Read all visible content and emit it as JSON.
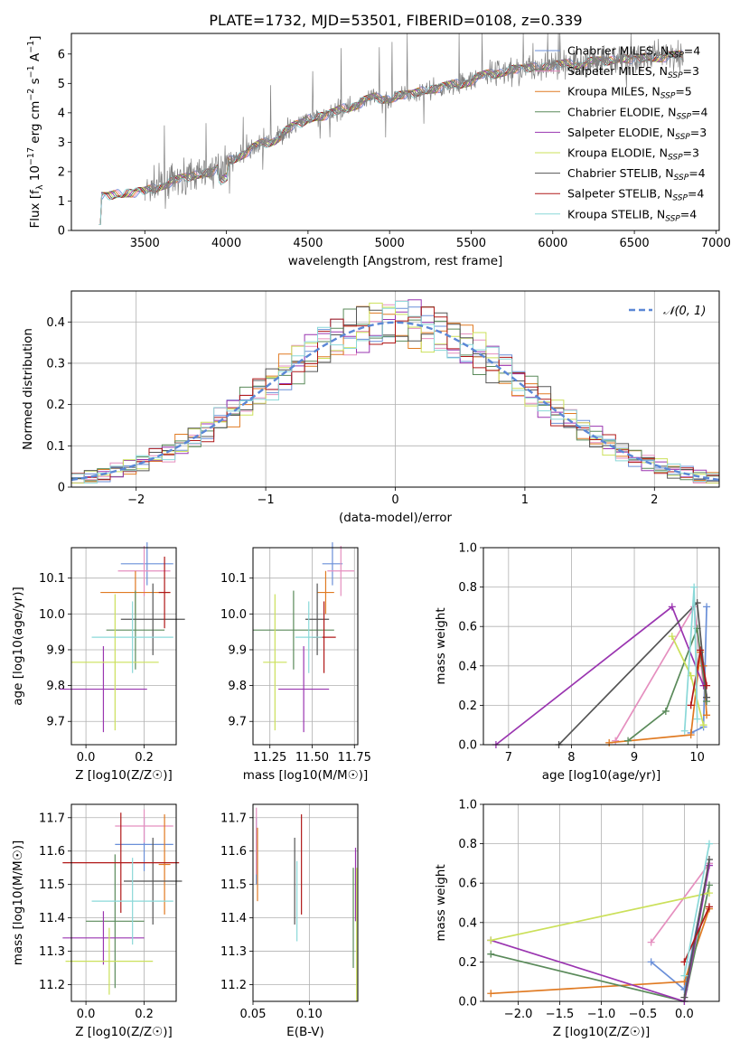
{
  "figure_title": "PLATE=1732, MJD=53501, FIBERID=0108, z=0.339",
  "colors": {
    "Chabrier MILES": "#6a8fd8",
    "Salpeter MILES": "#e58fbf",
    "Kroupa MILES": "#e07a22",
    "Chabrier ELODIE": "#5a8a5a",
    "Salpeter ELODIE": "#9a35b0",
    "Kroupa ELODIE": "#cbe05a",
    "Chabrier STELIB": "#555555",
    "Salpeter STELIB": "#b01818",
    "Kroupa STELIB": "#8ad8d8"
  },
  "chart_data": [
    {
      "id": "spectrum",
      "type": "line",
      "title": "PLATE=1732, MJD=53501, FIBERID=0108, z=0.339",
      "xlabel": "wavelength [Angstrom, rest frame]",
      "ylabel": "Flux [f_λ 10^-17 erg cm^-2 s^-1 A^-1]",
      "xlim": [
        3050,
        7020
      ],
      "ylim": [
        0,
        6.7
      ],
      "xticks": [
        3500,
        4000,
        4500,
        5000,
        5500,
        6000,
        6500,
        7000
      ],
      "yticks": [
        0,
        1,
        2,
        3,
        4,
        5,
        6
      ],
      "grid": false,
      "legend_position": "top-right",
      "legend": [
        {
          "name": "Chabrier MILES",
          "nssp": "4"
        },
        {
          "name": "Salpeter MILES",
          "nssp": "3"
        },
        {
          "name": "Kroupa MILES",
          "nssp": "5"
        },
        {
          "name": "Chabrier ELODIE",
          "nssp": "4"
        },
        {
          "name": "Salpeter ELODIE",
          "nssp": "3"
        },
        {
          "name": "Kroupa ELODIE",
          "nssp": "3"
        },
        {
          "name": "Chabrier STELIB",
          "nssp": "4"
        },
        {
          "name": "Salpeter STELIB",
          "nssp": "4"
        },
        {
          "name": "Kroupa STELIB",
          "nssp": "4"
        }
      ],
      "continuum": {
        "x": [
          3220,
          3300,
          3400,
          3500,
          3600,
          3700,
          3800,
          3900,
          4000,
          4100,
          4200,
          4300,
          4400,
          4500,
          4600,
          4700,
          4800,
          4900,
          5000,
          5100,
          5200,
          5300,
          5400,
          5500,
          5600,
          5700,
          5800,
          5900,
          6000,
          6100,
          6200,
          6300,
          6400,
          6500,
          6600,
          6700,
          6800
        ],
        "y": [
          1.15,
          1.2,
          1.3,
          1.3,
          1.55,
          1.7,
          1.9,
          1.95,
          2.3,
          2.6,
          2.9,
          3.1,
          3.5,
          3.8,
          3.9,
          4.1,
          4.3,
          4.5,
          4.5,
          4.6,
          4.75,
          4.85,
          4.95,
          5.1,
          5.3,
          5.4,
          5.5,
          5.55,
          5.6,
          5.65,
          5.7,
          5.75,
          5.85,
          5.8,
          5.9,
          5.9,
          5.95
        ]
      },
      "data_range": [
        3500,
        6800
      ],
      "model_range": [
        3220,
        6800
      ]
    },
    {
      "id": "residuals",
      "type": "bar",
      "xlabel": "(data-model)/error",
      "ylabel": "Normed distribution",
      "xlim": [
        -2.5,
        2.5
      ],
      "ylim": [
        0,
        0.475
      ],
      "xticks": [
        -2,
        -1,
        0,
        1,
        2
      ],
      "yticks": [
        0,
        0.1,
        0.2,
        0.3,
        0.4
      ],
      "grid": true,
      "legend_position": "top-right",
      "reference_curve": "N(0,1)",
      "bin_width": 0.1
    },
    {
      "id": "age_vs_Z",
      "type": "scatter",
      "xlabel": "Z [log10(Z/Z☉)]",
      "ylabel": "age [log10(age/yr)]",
      "xlim": [
        -0.05,
        0.31
      ],
      "ylim": [
        9.635,
        10.185
      ],
      "xticks": [
        0.0,
        0.2
      ],
      "yticks": [
        9.7,
        9.8,
        9.9,
        10.0,
        10.1
      ],
      "grid": true,
      "points": [
        {
          "model": "Chabrier MILES",
          "x": 0.21,
          "y": 10.14,
          "xerr": 0.09,
          "yerr": 0.06
        },
        {
          "model": "Salpeter MILES",
          "x": 0.2,
          "y": 10.12,
          "xerr": 0.09,
          "yerr": 0.07
        },
        {
          "model": "Kroupa MILES",
          "x": 0.17,
          "y": 10.06,
          "xerr": 0.12,
          "yerr": 0.06
        },
        {
          "model": "Chabrier ELODIE",
          "x": 0.17,
          "y": 9.955,
          "xerr": 0.1,
          "yerr": 0.11
        },
        {
          "model": "Salpeter ELODIE",
          "x": 0.06,
          "y": 9.79,
          "xerr": 0.15,
          "yerr": 0.12
        },
        {
          "model": "Kroupa ELODIE",
          "x": 0.1,
          "y": 9.865,
          "xerr": 0.15,
          "yerr": 0.19
        },
        {
          "model": "Chabrier STELIB",
          "x": 0.23,
          "y": 9.985,
          "xerr": 0.11,
          "yerr": 0.1
        },
        {
          "model": "Salpeter STELIB",
          "x": 0.27,
          "y": 10.06,
          "xerr": 0.02,
          "yerr": 0.1
        },
        {
          "model": "Kroupa STELIB",
          "x": 0.16,
          "y": 9.935,
          "xerr": 0.14,
          "yerr": 0.1
        }
      ]
    },
    {
      "id": "age_vs_mass",
      "type": "scatter",
      "xlabel": "mass [log10(M/M☉)]",
      "ylabel": "",
      "xlim": [
        11.15,
        11.77
      ],
      "ylim": [
        9.635,
        10.185
      ],
      "xticks": [
        11.25,
        11.5,
        11.75
      ],
      "yticks": [
        9.7,
        9.8,
        9.9,
        10.0,
        10.1
      ],
      "grid": true,
      "points": [
        {
          "model": "Chabrier MILES",
          "x": 11.62,
          "y": 10.14,
          "xerr": 0.06,
          "yerr": 0.06
        },
        {
          "model": "Salpeter MILES",
          "x": 11.67,
          "y": 10.12,
          "xerr": 0.08,
          "yerr": 0.07
        },
        {
          "model": "Kroupa MILES",
          "x": 11.58,
          "y": 10.06,
          "xerr": 0.05,
          "yerr": 0.06
        },
        {
          "model": "Chabrier ELODIE",
          "x": 11.39,
          "y": 9.955,
          "xerr": 0.24,
          "yerr": 0.11
        },
        {
          "model": "Salpeter ELODIE",
          "x": 11.45,
          "y": 9.79,
          "xerr": 0.15,
          "yerr": 0.12
        },
        {
          "model": "Kroupa ELODIE",
          "x": 11.28,
          "y": 9.865,
          "xerr": 0.07,
          "yerr": 0.19
        },
        {
          "model": "Chabrier STELIB",
          "x": 11.53,
          "y": 9.985,
          "xerr": 0.07,
          "yerr": 0.1
        },
        {
          "model": "Salpeter STELIB",
          "x": 11.57,
          "y": 9.935,
          "xerr": 0.07,
          "yerr": 0.1
        },
        {
          "model": "Kroupa STELIB",
          "x": 11.48,
          "y": 9.935,
          "xerr": 0.08,
          "yerr": 0.1
        }
      ]
    },
    {
      "id": "weight_vs_age",
      "type": "line",
      "xlabel": "age [log10(age/yr)]",
      "ylabel": "mass weight",
      "xlim": [
        6.6,
        10.35
      ],
      "ylim": [
        0,
        1.0
      ],
      "xticks": [
        7,
        8,
        9,
        10
      ],
      "yticks": [
        0.0,
        0.2,
        0.4,
        0.6,
        0.8,
        1.0
      ],
      "grid": true,
      "series": [
        {
          "model": "Chabrier MILES",
          "x": [
            9.9,
            10.1,
            10.15
          ],
          "y": [
            0.06,
            0.09,
            0.7
          ]
        },
        {
          "model": "Salpeter MILES",
          "x": [
            8.7,
            9.95,
            10.1
          ],
          "y": [
            0.02,
            0.7,
            0.3
          ]
        },
        {
          "model": "Kroupa MILES",
          "x": [
            8.6,
            9.9,
            10.05,
            10.1,
            10.15
          ],
          "y": [
            0.01,
            0.05,
            0.47,
            0.4,
            0.15
          ]
        },
        {
          "model": "Chabrier ELODIE",
          "x": [
            8.9,
            9.5,
            10.0,
            10.15
          ],
          "y": [
            0.02,
            0.17,
            0.59,
            0.22
          ]
        },
        {
          "model": "Salpeter ELODIE",
          "x": [
            6.8,
            9.6,
            10.1
          ],
          "y": [
            0.0,
            0.7,
            0.3
          ]
        },
        {
          "model": "Kroupa ELODIE",
          "x": [
            9.6,
            9.9,
            10.1
          ],
          "y": [
            0.55,
            0.35,
            0.1
          ]
        },
        {
          "model": "Chabrier STELIB",
          "x": [
            7.8,
            10.0,
            10.15
          ],
          "y": [
            0.0,
            0.72,
            0.24
          ]
        },
        {
          "model": "Salpeter STELIB",
          "x": [
            9.9,
            10.05,
            10.15
          ],
          "y": [
            0.2,
            0.48,
            0.3
          ]
        },
        {
          "model": "Kroupa STELIB",
          "x": [
            9.8,
            9.95,
            10.0
          ],
          "y": [
            0.07,
            0.8,
            0.13
          ]
        }
      ]
    },
    {
      "id": "mass_vs_Z",
      "type": "scatter",
      "xlabel": "Z [log10(Z/Z☉)]",
      "ylabel": "mass [log10(M/M☉)]",
      "xlim": [
        -0.05,
        0.31
      ],
      "ylim": [
        11.15,
        11.74
      ],
      "xticks": [
        0.0,
        0.2
      ],
      "yticks": [
        11.2,
        11.3,
        11.4,
        11.5,
        11.6,
        11.7
      ],
      "grid": true,
      "points": [
        {
          "model": "Chabrier MILES",
          "x": 0.2,
          "y": 11.62,
          "xerr": 0.1,
          "yerr": 0.08
        },
        {
          "model": "Salpeter MILES",
          "x": 0.2,
          "y": 11.675,
          "xerr": 0.1,
          "yerr": 0.05
        },
        {
          "model": "Kroupa MILES",
          "x": 0.27,
          "y": 11.56,
          "xerr": 0.02,
          "yerr": 0.15
        },
        {
          "model": "Chabrier ELODIE",
          "x": 0.1,
          "y": 11.39,
          "xerr": 0.1,
          "yerr": 0.2
        },
        {
          "model": "Salpeter ELODIE",
          "x": 0.06,
          "y": 11.34,
          "xerr": 0.14,
          "yerr": 0.08
        },
        {
          "model": "Kroupa ELODIE",
          "x": 0.08,
          "y": 11.27,
          "xerr": 0.15,
          "yerr": 0.1
        },
        {
          "model": "Chabrier STELIB",
          "x": 0.23,
          "y": 11.51,
          "xerr": 0.1,
          "yerr": 0.13
        },
        {
          "model": "Salpeter STELIB",
          "x": 0.12,
          "y": 11.565,
          "xerr": 0.2,
          "yerr": 0.15
        },
        {
          "model": "Kroupa STELIB",
          "x": 0.16,
          "y": 11.45,
          "xerr": 0.14,
          "yerr": 0.13
        }
      ]
    },
    {
      "id": "mass_vs_EBV",
      "type": "scatter",
      "xlabel": "E(B-V)",
      "ylabel": "",
      "xlim": [
        0.05,
        0.143
      ],
      "ylim": [
        11.15,
        11.74
      ],
      "xticks": [
        0.05,
        0.1
      ],
      "yticks": [
        11.2,
        11.3,
        11.4,
        11.5,
        11.6,
        11.7
      ],
      "grid": true,
      "points": [
        {
          "model": "Chabrier MILES",
          "x": 0.053,
          "y": 11.6,
          "xerr": 0,
          "yerr": 0.1
        },
        {
          "model": "Salpeter MILES",
          "x": 0.053,
          "y": 11.63,
          "xerr": 0,
          "yerr": 0.1
        },
        {
          "model": "Kroupa MILES",
          "x": 0.054,
          "y": 11.56,
          "xerr": 0,
          "yerr": 0.11
        },
        {
          "model": "Chabrier ELODIE",
          "x": 0.139,
          "y": 11.4,
          "xerr": 0,
          "yerr": 0.15
        },
        {
          "model": "Salpeter ELODIE",
          "x": 0.141,
          "y": 11.5,
          "xerr": 0,
          "yerr": 0.11
        },
        {
          "model": "Kroupa ELODIE",
          "x": 0.142,
          "y": 11.35,
          "xerr": 0,
          "yerr": 0.2
        },
        {
          "model": "Chabrier STELIB",
          "x": 0.087,
          "y": 11.51,
          "xerr": 0,
          "yerr": 0.13
        },
        {
          "model": "Salpeter STELIB",
          "x": 0.093,
          "y": 11.56,
          "xerr": 0,
          "yerr": 0.15
        },
        {
          "model": "Kroupa STELIB",
          "x": 0.089,
          "y": 11.45,
          "xerr": 0,
          "yerr": 0.12
        }
      ]
    },
    {
      "id": "weight_vs_Z",
      "type": "line",
      "xlabel": "Z [log10(Z/Z☉)]",
      "ylabel": "mass weight",
      "xlim": [
        -2.42,
        0.42
      ],
      "ylim": [
        0,
        1.0
      ],
      "xticks": [
        -2.0,
        -1.5,
        -1.0,
        -0.5,
        0.0
      ],
      "yticks": [
        0.0,
        0.2,
        0.4,
        0.6,
        0.8,
        1.0
      ],
      "grid": true,
      "series": [
        {
          "model": "Chabrier MILES",
          "x": [
            -0.4,
            0.0,
            0.3
          ],
          "y": [
            0.2,
            0.06,
            0.7
          ]
        },
        {
          "model": "Salpeter MILES",
          "x": [
            -0.4,
            0.3
          ],
          "y": [
            0.3,
            0.7
          ]
        },
        {
          "model": "Kroupa MILES",
          "x": [
            -2.33,
            0.0,
            0.3
          ],
          "y": [
            0.04,
            0.1,
            0.47
          ]
        },
        {
          "model": "Chabrier ELODIE",
          "x": [
            -2.33,
            0.0,
            0.3
          ],
          "y": [
            0.24,
            0.0,
            0.59
          ]
        },
        {
          "model": "Salpeter ELODIE",
          "x": [
            -2.33,
            0.0,
            0.3
          ],
          "y": [
            0.31,
            0.0,
            0.69
          ]
        },
        {
          "model": "Kroupa ELODIE",
          "x": [
            -2.33,
            0.3
          ],
          "y": [
            0.31,
            0.55
          ]
        },
        {
          "model": "Chabrier STELIB",
          "x": [
            0.0,
            0.3
          ],
          "y": [
            0.02,
            0.72
          ]
        },
        {
          "model": "Salpeter STELIB",
          "x": [
            0.0,
            0.3
          ],
          "y": [
            0.2,
            0.48
          ]
        },
        {
          "model": "Kroupa STELIB",
          "x": [
            0.0,
            0.3
          ],
          "y": [
            0.13,
            0.8
          ]
        }
      ]
    }
  ]
}
